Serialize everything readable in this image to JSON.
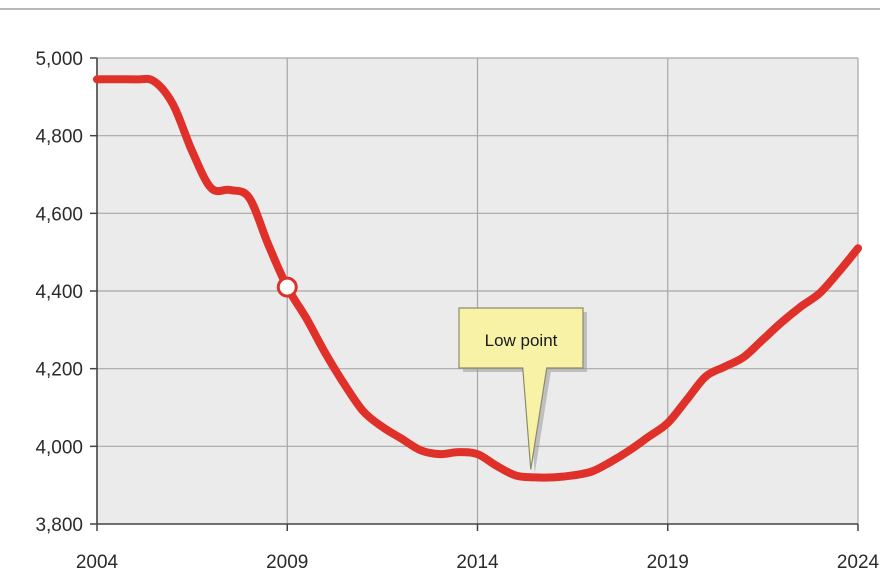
{
  "chart_data": {
    "type": "line",
    "title": "",
    "xlabel": "",
    "ylabel": "",
    "xlim": [
      2004,
      2024
    ],
    "ylim": [
      3800,
      5000
    ],
    "x_ticks": [
      2004,
      2009,
      2014,
      2019,
      2024
    ],
    "x_tick_labels": [
      "2004",
      "2009",
      "2014",
      "2019",
      "2024"
    ],
    "y_ticks": [
      3800,
      4000,
      4200,
      4400,
      4600,
      4800,
      5000
    ],
    "y_tick_labels": [
      "3,800",
      "4,000",
      "4,200",
      "4,400",
      "4,600",
      "4,800",
      "5,000"
    ],
    "grid": true,
    "series": [
      {
        "color": "#e0302a",
        "x": [
          2004,
          2005,
          2005.5,
          2006,
          2006.5,
          2007,
          2007.5,
          2008,
          2008.5,
          2009,
          2009.5,
          2010,
          2010.5,
          2011,
          2011.5,
          2012,
          2012.5,
          2013,
          2013.5,
          2014,
          2014.5,
          2015,
          2015.5,
          2016,
          2016.5,
          2017,
          2017.5,
          2018,
          2018.5,
          2019,
          2019.5,
          2020,
          2020.5,
          2021,
          2021.5,
          2022,
          2022.5,
          2023,
          2023.5,
          2024
        ],
        "y": [
          4945,
          4945,
          4940,
          4880,
          4760,
          4665,
          4660,
          4640,
          4520,
          4410,
          4330,
          4240,
          4160,
          4090,
          4050,
          4020,
          3990,
          3980,
          3985,
          3980,
          3950,
          3925,
          3920,
          3920,
          3925,
          3935,
          3960,
          3990,
          4025,
          4060,
          4120,
          4180,
          4205,
          4230,
          4275,
          4320,
          4360,
          4395,
          4450,
          4510
        ]
      }
    ],
    "highlight_point": {
      "x": 2009,
      "y": 4410
    },
    "annotations": [
      {
        "text": "Low point",
        "x": 2015.4,
        "y": 3920
      }
    ]
  }
}
